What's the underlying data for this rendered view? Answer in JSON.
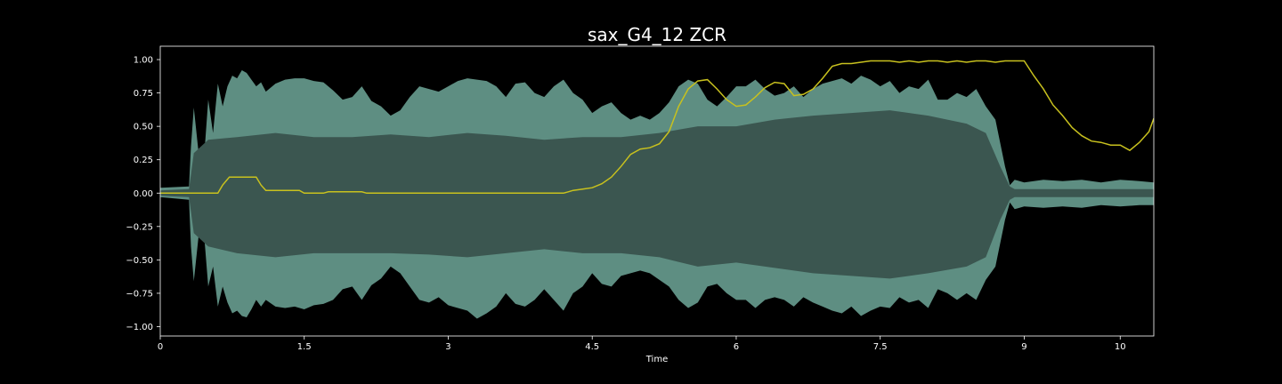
{
  "chart_data": {
    "type": "line",
    "title": "sax_G4_12 ZCR",
    "xlabel": "Time",
    "ylabel": "",
    "xlim": [
      0,
      10.35
    ],
    "ylim": [
      -1.07,
      1.1
    ],
    "x_ticks": [
      0,
      1.5,
      3,
      4.5,
      6,
      7.5,
      9,
      10
    ],
    "x_tick_labels": [
      "0",
      "1.5",
      "3",
      "4.5",
      "6",
      "7.5",
      "9",
      "10"
    ],
    "y_ticks": [
      1.0,
      0.75,
      0.5,
      0.25,
      0.0,
      -0.25,
      -0.5,
      -0.75,
      -1.0
    ],
    "y_tick_labels": [
      "1.00",
      "0.75",
      "0.50",
      "0.25",
      "0.00",
      "−0.25",
      "−0.50",
      "−0.75",
      "−1.00"
    ],
    "grid": false,
    "colors": {
      "background": "#000000",
      "waveform_peak": "#5e8e82",
      "waveform_body": "#3b5650",
      "zcr_line": "#c8c11e",
      "axes": "#ffffff"
    },
    "series": [
      {
        "type": "area",
        "peak_envelope": {
          "x": [
            0,
            0.3,
            0.32,
            0.35,
            0.4,
            0.45,
            0.5,
            0.55,
            0.6,
            0.65,
            0.7,
            0.75,
            0.8,
            0.85,
            0.9,
            0.95,
            1.0,
            1.05,
            1.1,
            1.2,
            1.3,
            1.4,
            1.5,
            1.6,
            1.7,
            1.8,
            1.9,
            2.0,
            2.1,
            2.2,
            2.3,
            2.4,
            2.5,
            2.6,
            2.7,
            2.8,
            2.9,
            3.0,
            3.1,
            3.2,
            3.3,
            3.4,
            3.5,
            3.6,
            3.7,
            3.8,
            3.9,
            4.0,
            4.1,
            4.2,
            4.3,
            4.4,
            4.5,
            4.6,
            4.7,
            4.8,
            4.9,
            5.0,
            5.1,
            5.2,
            5.3,
            5.4,
            5.5,
            5.6,
            5.7,
            5.8,
            5.9,
            6.0,
            6.1,
            6.2,
            6.3,
            6.4,
            6.5,
            6.6,
            6.7,
            6.8,
            6.9,
            7.0,
            7.1,
            7.2,
            7.3,
            7.4,
            7.5,
            7.6,
            7.7,
            7.8,
            7.9,
            8.0,
            8.1,
            8.2,
            8.3,
            8.4,
            8.5,
            8.6,
            8.7,
            8.8,
            8.85,
            8.9,
            9.0,
            9.2,
            9.4,
            9.6,
            9.8,
            10.0,
            10.2,
            10.35
          ],
          "upper": [
            0.04,
            0.05,
            0.35,
            0.64,
            0.3,
            0.2,
            0.7,
            0.45,
            0.82,
            0.65,
            0.8,
            0.88,
            0.86,
            0.92,
            0.9,
            0.85,
            0.8,
            0.83,
            0.76,
            0.82,
            0.85,
            0.86,
            0.86,
            0.84,
            0.83,
            0.77,
            0.7,
            0.72,
            0.8,
            0.69,
            0.65,
            0.58,
            0.62,
            0.72,
            0.8,
            0.78,
            0.76,
            0.8,
            0.84,
            0.86,
            0.85,
            0.84,
            0.8,
            0.72,
            0.82,
            0.83,
            0.75,
            0.72,
            0.8,
            0.85,
            0.75,
            0.7,
            0.6,
            0.65,
            0.68,
            0.6,
            0.55,
            0.58,
            0.55,
            0.6,
            0.68,
            0.8,
            0.85,
            0.82,
            0.7,
            0.65,
            0.72,
            0.8,
            0.8,
            0.85,
            0.78,
            0.73,
            0.75,
            0.8,
            0.72,
            0.78,
            0.82,
            0.84,
            0.86,
            0.82,
            0.88,
            0.85,
            0.8,
            0.84,
            0.75,
            0.8,
            0.78,
            0.85,
            0.7,
            0.7,
            0.75,
            0.72,
            0.78,
            0.65,
            0.55,
            0.2,
            0.06,
            0.1,
            0.08,
            0.1,
            0.09,
            0.1,
            0.08,
            0.1,
            0.09,
            0.08
          ],
          "lower": [
            -0.03,
            -0.05,
            -0.4,
            -0.66,
            -0.32,
            -0.25,
            -0.7,
            -0.55,
            -0.85,
            -0.7,
            -0.82,
            -0.9,
            -0.88,
            -0.92,
            -0.93,
            -0.87,
            -0.8,
            -0.85,
            -0.8,
            -0.85,
            -0.86,
            -0.85,
            -0.87,
            -0.84,
            -0.83,
            -0.8,
            -0.72,
            -0.7,
            -0.8,
            -0.69,
            -0.64,
            -0.55,
            -0.6,
            -0.7,
            -0.8,
            -0.82,
            -0.78,
            -0.84,
            -0.86,
            -0.88,
            -0.94,
            -0.9,
            -0.85,
            -0.75,
            -0.83,
            -0.85,
            -0.8,
            -0.72,
            -0.8,
            -0.88,
            -0.75,
            -0.7,
            -0.6,
            -0.68,
            -0.7,
            -0.62,
            -0.6,
            -0.58,
            -0.6,
            -0.65,
            -0.7,
            -0.8,
            -0.86,
            -0.82,
            -0.7,
            -0.68,
            -0.75,
            -0.8,
            -0.8,
            -0.86,
            -0.8,
            -0.78,
            -0.8,
            -0.85,
            -0.78,
            -0.82,
            -0.85,
            -0.88,
            -0.9,
            -0.85,
            -0.92,
            -0.88,
            -0.85,
            -0.86,
            -0.78,
            -0.82,
            -0.8,
            -0.86,
            -0.72,
            -0.75,
            -0.8,
            -0.75,
            -0.8,
            -0.65,
            -0.55,
            -0.2,
            -0.07,
            -0.12,
            -0.1,
            -0.11,
            -0.1,
            -0.11,
            -0.09,
            -0.1,
            -0.09,
            -0.09
          ]
        },
        "body_envelope": {
          "x": [
            0,
            0.3,
            0.35,
            0.5,
            0.8,
            1.2,
            1.6,
            2.0,
            2.4,
            2.8,
            3.2,
            3.6,
            4.0,
            4.4,
            4.8,
            5.2,
            5.6,
            6.0,
            6.4,
            6.8,
            7.2,
            7.6,
            8.0,
            8.4,
            8.6,
            8.75,
            8.85,
            8.9,
            10.35
          ],
          "upper": [
            0.02,
            0.03,
            0.3,
            0.4,
            0.42,
            0.45,
            0.42,
            0.42,
            0.44,
            0.42,
            0.45,
            0.43,
            0.4,
            0.42,
            0.42,
            0.45,
            0.5,
            0.5,
            0.55,
            0.58,
            0.6,
            0.62,
            0.58,
            0.52,
            0.45,
            0.2,
            0.05,
            0.03,
            0.03
          ],
          "lower": [
            -0.02,
            -0.03,
            -0.3,
            -0.4,
            -0.45,
            -0.48,
            -0.45,
            -0.45,
            -0.45,
            -0.46,
            -0.48,
            -0.45,
            -0.42,
            -0.45,
            -0.45,
            -0.48,
            -0.55,
            -0.52,
            -0.56,
            -0.6,
            -0.62,
            -0.64,
            -0.6,
            -0.55,
            -0.48,
            -0.2,
            -0.05,
            -0.03,
            -0.03
          ]
        }
      },
      {
        "type": "line",
        "x": [
          0,
          0.3,
          0.6,
          0.65,
          0.72,
          0.8,
          1.0,
          1.05,
          1.1,
          1.45,
          1.5,
          1.7,
          1.75,
          1.85,
          2.1,
          2.15,
          2.25,
          2.5,
          3.0,
          3.5,
          4.0,
          4.2,
          4.25,
          4.3,
          4.4,
          4.5,
          4.6,
          4.7,
          4.8,
          4.9,
          5.0,
          5.1,
          5.2,
          5.3,
          5.4,
          5.5,
          5.6,
          5.7,
          5.8,
          5.9,
          6.0,
          6.1,
          6.2,
          6.3,
          6.4,
          6.5,
          6.6,
          6.7,
          6.8,
          6.9,
          7.0,
          7.1,
          7.2,
          7.3,
          7.4,
          7.5,
          7.6,
          7.7,
          7.8,
          7.9,
          8.0,
          8.1,
          8.2,
          8.3,
          8.4,
          8.5,
          8.6,
          8.7,
          8.8,
          8.9,
          9.0,
          9.1,
          9.2,
          9.3,
          9.4,
          9.5,
          9.6,
          9.7,
          9.8,
          9.9,
          10.0,
          10.1,
          10.2,
          10.3,
          10.35
        ],
        "values": [
          0.0,
          0.0,
          0.0,
          0.06,
          0.12,
          0.12,
          0.12,
          0.06,
          0.02,
          0.02,
          0.0,
          0.0,
          0.01,
          0.01,
          0.01,
          0.0,
          0.0,
          0.0,
          0.0,
          0.0,
          0.0,
          0.0,
          0.01,
          0.02,
          0.03,
          0.04,
          0.07,
          0.12,
          0.2,
          0.29,
          0.33,
          0.34,
          0.37,
          0.46,
          0.65,
          0.78,
          0.84,
          0.85,
          0.78,
          0.7,
          0.65,
          0.66,
          0.72,
          0.79,
          0.83,
          0.82,
          0.73,
          0.74,
          0.78,
          0.86,
          0.95,
          0.97,
          0.97,
          0.98,
          0.99,
          0.99,
          0.99,
          0.98,
          0.99,
          0.98,
          0.99,
          0.99,
          0.98,
          0.99,
          0.98,
          0.99,
          0.99,
          0.98,
          0.99,
          0.99,
          0.99,
          0.88,
          0.78,
          0.66,
          0.58,
          0.49,
          0.43,
          0.39,
          0.38,
          0.36,
          0.36,
          0.32,
          0.38,
          0.46,
          0.56
        ]
      }
    ]
  }
}
